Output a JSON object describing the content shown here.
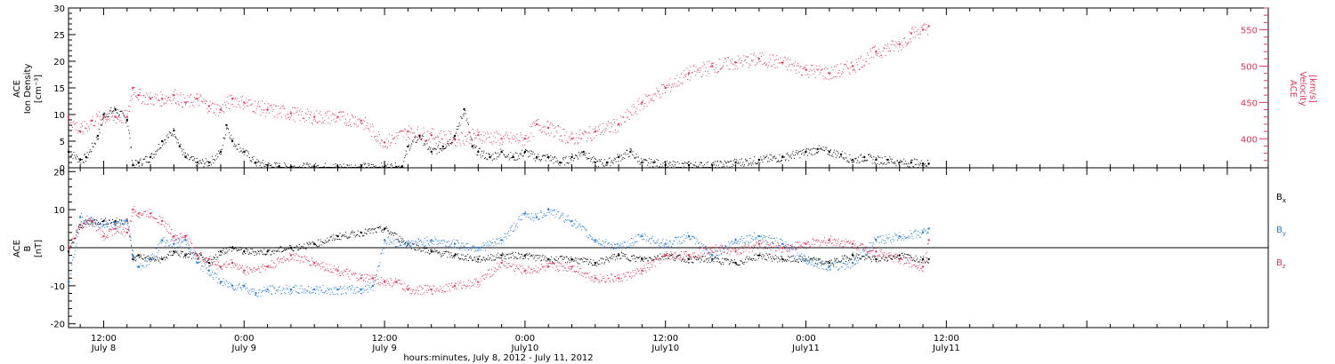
{
  "figure": {
    "xlabel": "hours:minutes, July  8, 2012 - July 11, 2012",
    "x_range_hours": [
      -15,
      87.5
    ],
    "x_ticks": [
      {
        "hours": -12,
        "time": "12:00",
        "date": "July 8"
      },
      {
        "hours": 0,
        "time": "0:00",
        "date": "July 9"
      },
      {
        "hours": 12,
        "time": "12:00",
        "date": "July 9"
      },
      {
        "hours": 24,
        "time": "0:00",
        "date": "July10"
      },
      {
        "hours": 36,
        "time": "12:00",
        "date": "July10"
      },
      {
        "hours": 48,
        "time": "0:00",
        "date": "July11"
      },
      {
        "hours": 60,
        "time": "12:00",
        "date": "July11"
      }
    ]
  },
  "chart_data": [
    {
      "type": "scatter",
      "panel": "top",
      "ylabel_left": [
        "ACE",
        "Ion Density",
        "[cm⁻³]"
      ],
      "ylabel_right": [
        "ACE",
        "Velocity",
        "[km/s]"
      ],
      "ylim_left": [
        0,
        30
      ],
      "yticks_left": [
        0,
        5,
        10,
        15,
        20,
        25,
        30
      ],
      "ylim_right": [
        360,
        580
      ],
      "yticks_right": [
        400,
        450,
        500,
        550
      ],
      "colors": {
        "density": "#000000",
        "velocity": "#e8335a"
      },
      "series": [
        {
          "axis": "left",
          "x_hours": [
            -15,
            -14,
            -13.5,
            -12.5,
            -12,
            -11,
            -10,
            -9.5,
            -9,
            -8,
            -7,
            -6,
            -5.5,
            -5,
            -4,
            -3,
            -2,
            -1.5,
            -1,
            0,
            1,
            2,
            3,
            4,
            6,
            8,
            10,
            12,
            13,
            13.5,
            14,
            15,
            16,
            17,
            18,
            18.8,
            19.5,
            20,
            21,
            22,
            23,
            24,
            25,
            26,
            27,
            28,
            29,
            30,
            31,
            32,
            33,
            34,
            35,
            36,
            38,
            40,
            42,
            44,
            46,
            48,
            49,
            50,
            51,
            52,
            53,
            54,
            55,
            56,
            57,
            58,
            58.5
          ],
          "y": [
            3,
            1.5,
            2,
            6,
            10,
            11,
            9,
            0.5,
            1,
            2,
            5,
            7,
            4,
            2,
            1,
            1,
            3,
            8,
            5,
            3,
            1,
            0.5,
            0.3,
            0.2,
            0.2,
            0.2,
            0.2,
            0.2,
            0.2,
            0.3,
            4,
            6,
            3,
            4,
            6,
            11,
            4,
            3,
            2,
            3,
            2,
            3,
            2,
            2,
            1,
            2,
            3,
            1,
            1,
            2,
            3,
            1,
            1,
            0.5,
            0.5,
            0.5,
            1,
            1.5,
            2,
            3,
            3.5,
            3,
            2.5,
            1.5,
            2,
            1.5,
            1.5,
            1,
            1,
            0.8,
            0.8
          ]
        },
        {
          "axis": "right",
          "x_hours": [
            -15,
            -14,
            -13,
            -12,
            -11,
            -10,
            -9.5,
            -9,
            -8,
            -7,
            -6,
            -5,
            -4,
            -3,
            -2,
            -1,
            0,
            2,
            4,
            6,
            8,
            10,
            12,
            14,
            16,
            18,
            20,
            22,
            24,
            25,
            26,
            28,
            30,
            32,
            34,
            36,
            38,
            40,
            42,
            44,
            46,
            48,
            50,
            52,
            54,
            56,
            57,
            58,
            58.5
          ],
          "y": [
            430,
            410,
            425,
            430,
            430,
            430,
            470,
            460,
            455,
            455,
            460,
            450,
            455,
            445,
            440,
            455,
            450,
            440,
            435,
            430,
            430,
            425,
            395,
            410,
            405,
            400,
            405,
            400,
            400,
            420,
            415,
            400,
            410,
            420,
            450,
            470,
            490,
            500,
            505,
            510,
            505,
            495,
            490,
            500,
            520,
            530,
            545,
            550,
            555
          ]
        }
      ]
    },
    {
      "type": "scatter",
      "panel": "bottom",
      "ylabel_left": [
        "ACE",
        "B",
        "[nT]"
      ],
      "ylim": [
        -21,
        21
      ],
      "yticks": [
        -20,
        -10,
        0,
        10,
        20
      ],
      "zero_line": true,
      "legend_position": "right",
      "colors": {
        "Bx": "#000000",
        "By": "#1e7fe0",
        "Bz": "#e8335a"
      },
      "series": [
        {
          "name": "Bx",
          "x_hours": [
            -15,
            -14,
            -13,
            -12,
            -11,
            -10,
            -9.5,
            -9,
            -8,
            -7,
            -6,
            -5,
            -4,
            -3,
            -2,
            -1,
            0,
            2,
            4,
            6,
            8,
            10,
            12,
            14,
            16,
            18,
            20,
            22,
            24,
            26,
            28,
            30,
            32,
            34,
            36,
            38,
            40,
            42,
            44,
            46,
            48,
            50,
            52,
            54,
            56,
            58,
            58.5
          ],
          "y": [
            -1,
            6,
            7,
            7,
            7,
            7,
            -3,
            -2,
            -3,
            -3,
            -1,
            -2,
            -2,
            -4,
            -1,
            0,
            -1,
            -1,
            0,
            1,
            3,
            4,
            5,
            1,
            -1,
            -2,
            -3,
            -2,
            -2,
            -3,
            -3,
            -4,
            -2,
            -3,
            -2,
            -3,
            -3,
            -4,
            -2,
            -3,
            -3,
            -4,
            -2,
            -3,
            -2,
            -3,
            -3
          ]
        },
        {
          "name": "By",
          "x_hours": [
            -15,
            -14,
            -13,
            -12,
            -11,
            -10,
            -9.5,
            -9,
            -8,
            -7,
            -6,
            -5,
            -4,
            -3,
            -2,
            -1,
            0,
            1,
            2,
            4,
            6,
            8,
            10,
            11,
            12,
            14,
            16,
            18,
            20,
            22,
            24,
            25,
            26,
            28,
            30,
            32,
            34,
            36,
            38,
            40,
            42,
            44,
            46,
            48,
            50,
            52,
            54,
            56,
            58,
            58.5
          ],
          "y": [
            -9,
            8,
            7,
            6,
            6,
            7,
            -2,
            -5,
            -3,
            2,
            1,
            2,
            -4,
            -6,
            -9,
            -10,
            -10,
            -12,
            -11,
            -11,
            -11,
            -11,
            -11,
            -10,
            2,
            1,
            2,
            1,
            0,
            2,
            9,
            8,
            10,
            7,
            2,
            0,
            3,
            1,
            3,
            -2,
            2,
            3,
            1,
            -3,
            -5,
            -4,
            2,
            3,
            4,
            5
          ]
        },
        {
          "name": "Bz",
          "x_hours": [
            -15,
            -14,
            -13,
            -12,
            -11,
            -10,
            -9.5,
            -9,
            -8,
            -7,
            -6,
            -5,
            -4,
            -3,
            -2,
            -1,
            0,
            2,
            4,
            6,
            8,
            10,
            11,
            12,
            13,
            14,
            16,
            18,
            20,
            22,
            24,
            26,
            28,
            30,
            32,
            34,
            36,
            38,
            40,
            42,
            44,
            46,
            48,
            50,
            52,
            54,
            56,
            58,
            58.5
          ],
          "y": [
            0,
            6,
            7,
            3,
            5,
            4,
            10,
            9,
            9,
            7,
            3,
            3,
            -2,
            -3,
            -5,
            -4,
            -6,
            -5,
            -2,
            -4,
            -6,
            -8,
            -8,
            -9,
            -9,
            -11,
            -11,
            -10,
            -9,
            -4,
            -6,
            -5,
            -5,
            -8,
            -8,
            -6,
            -2,
            -2,
            0,
            -1,
            1,
            0,
            1,
            2,
            1,
            -1,
            -3,
            -5,
            2
          ]
        }
      ],
      "legend": [
        {
          "key": "Bx",
          "label": "B",
          "sub": "x"
        },
        {
          "key": "By",
          "label": "B",
          "sub": "y"
        },
        {
          "key": "Bz",
          "label": "B",
          "sub": "z"
        }
      ]
    }
  ]
}
